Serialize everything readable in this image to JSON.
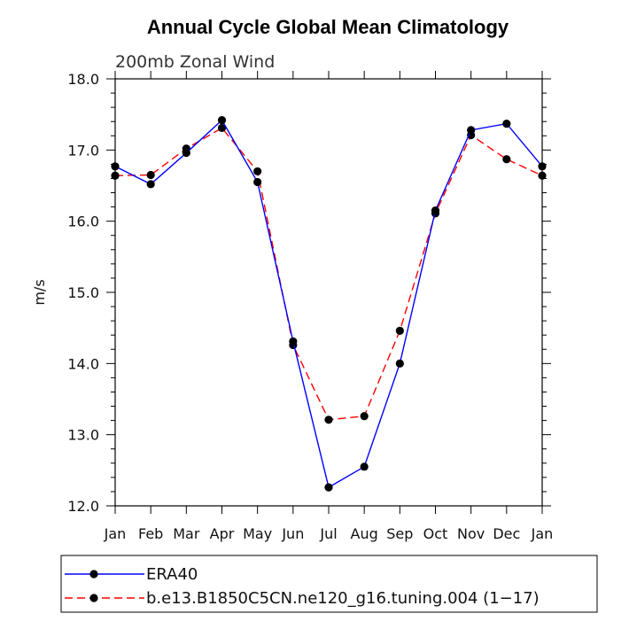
{
  "chart_data": {
    "type": "line",
    "title": "Annual Cycle Global Mean Climatology",
    "subtitle": "200mb Zonal Wind",
    "xlabel": "",
    "ylabel": "m/s",
    "ylim": [
      12.0,
      18.0
    ],
    "yticks": [
      "12.0",
      "13.0",
      "14.0",
      "15.0",
      "16.0",
      "17.0",
      "18.0"
    ],
    "categories": [
      "Jan",
      "Feb",
      "Mar",
      "Apr",
      "May",
      "Jun",
      "Jul",
      "Aug",
      "Sep",
      "Oct",
      "Nov",
      "Dec",
      "Jan"
    ],
    "series": [
      {
        "name": "ERA40",
        "color": "#0000ff",
        "dash": "solid",
        "values": [
          16.77,
          16.52,
          16.96,
          17.42,
          16.55,
          14.31,
          12.26,
          12.55,
          14.0,
          16.15,
          17.28,
          17.37,
          16.77
        ]
      },
      {
        "name": "b.e13.B1850C5CN.ne120_g16.tuning.004 (1−17)",
        "color": "#ff0000",
        "dash": "dashed",
        "values": [
          16.64,
          16.65,
          17.02,
          17.31,
          16.7,
          14.26,
          13.21,
          13.26,
          14.46,
          16.11,
          17.21,
          16.87,
          16.64
        ]
      }
    ],
    "legend": "bottom"
  }
}
